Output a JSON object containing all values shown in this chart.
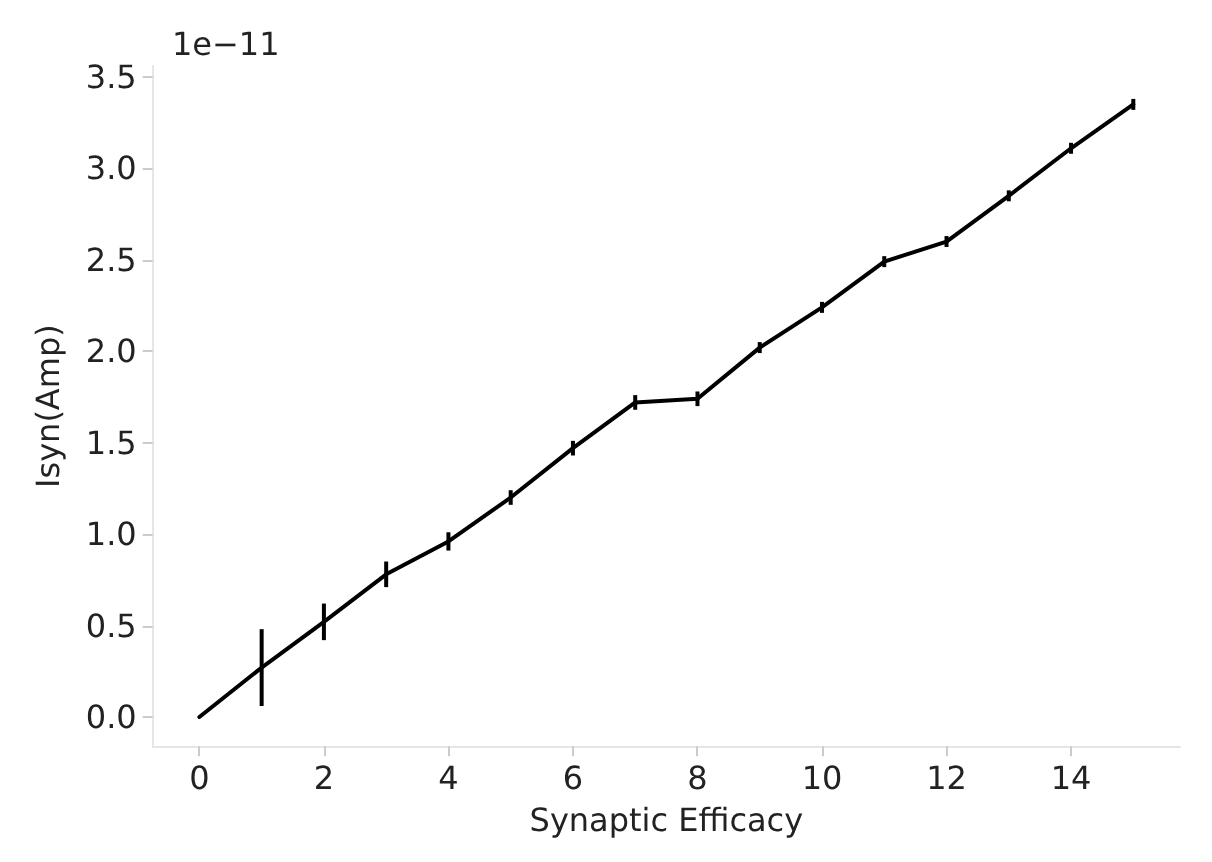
{
  "chart_data": {
    "type": "line",
    "xlabel": "Synaptic Efficacy",
    "ylabel": "Isyn(Amp)",
    "annotations": [
      "1e−11"
    ],
    "x": [
      0,
      1,
      2,
      3,
      4,
      5,
      6,
      7,
      8,
      9,
      10,
      11,
      12,
      13,
      14,
      15
    ],
    "series": [
      {
        "color": "#000000",
        "values": [
          0,
          0.27,
          0.52,
          0.78,
          0.96,
          1.2,
          1.47,
          1.72,
          1.74,
          2.02,
          2.24,
          2.49,
          2.6,
          2.85,
          3.11,
          3.35
        ],
        "errors": [
          null,
          0.21,
          0.1,
          0.07,
          0.05,
          0.04,
          0.04,
          0.04,
          0.04,
          0.03,
          0.03,
          0.03,
          0.03,
          0.03,
          0.03,
          0.03
        ]
      }
    ],
    "xlim": [
      -0.75,
      15.75
    ],
    "xticks": [
      0,
      2,
      4,
      6,
      8,
      10,
      12,
      14
    ],
    "ylim": [
      -0.16,
      3.56
    ],
    "yticks": [
      {
        "value": 0,
        "label": "0.0"
      },
      0.5,
      {
        "value": 1,
        "label": "1.0"
      },
      1.5,
      {
        "value": 2,
        "label": "2.0"
      },
      2.5,
      {
        "value": 3,
        "label": "3.0"
      },
      3.5
    ],
    "grid": false,
    "marker": "none",
    "line_style": "solid"
  }
}
